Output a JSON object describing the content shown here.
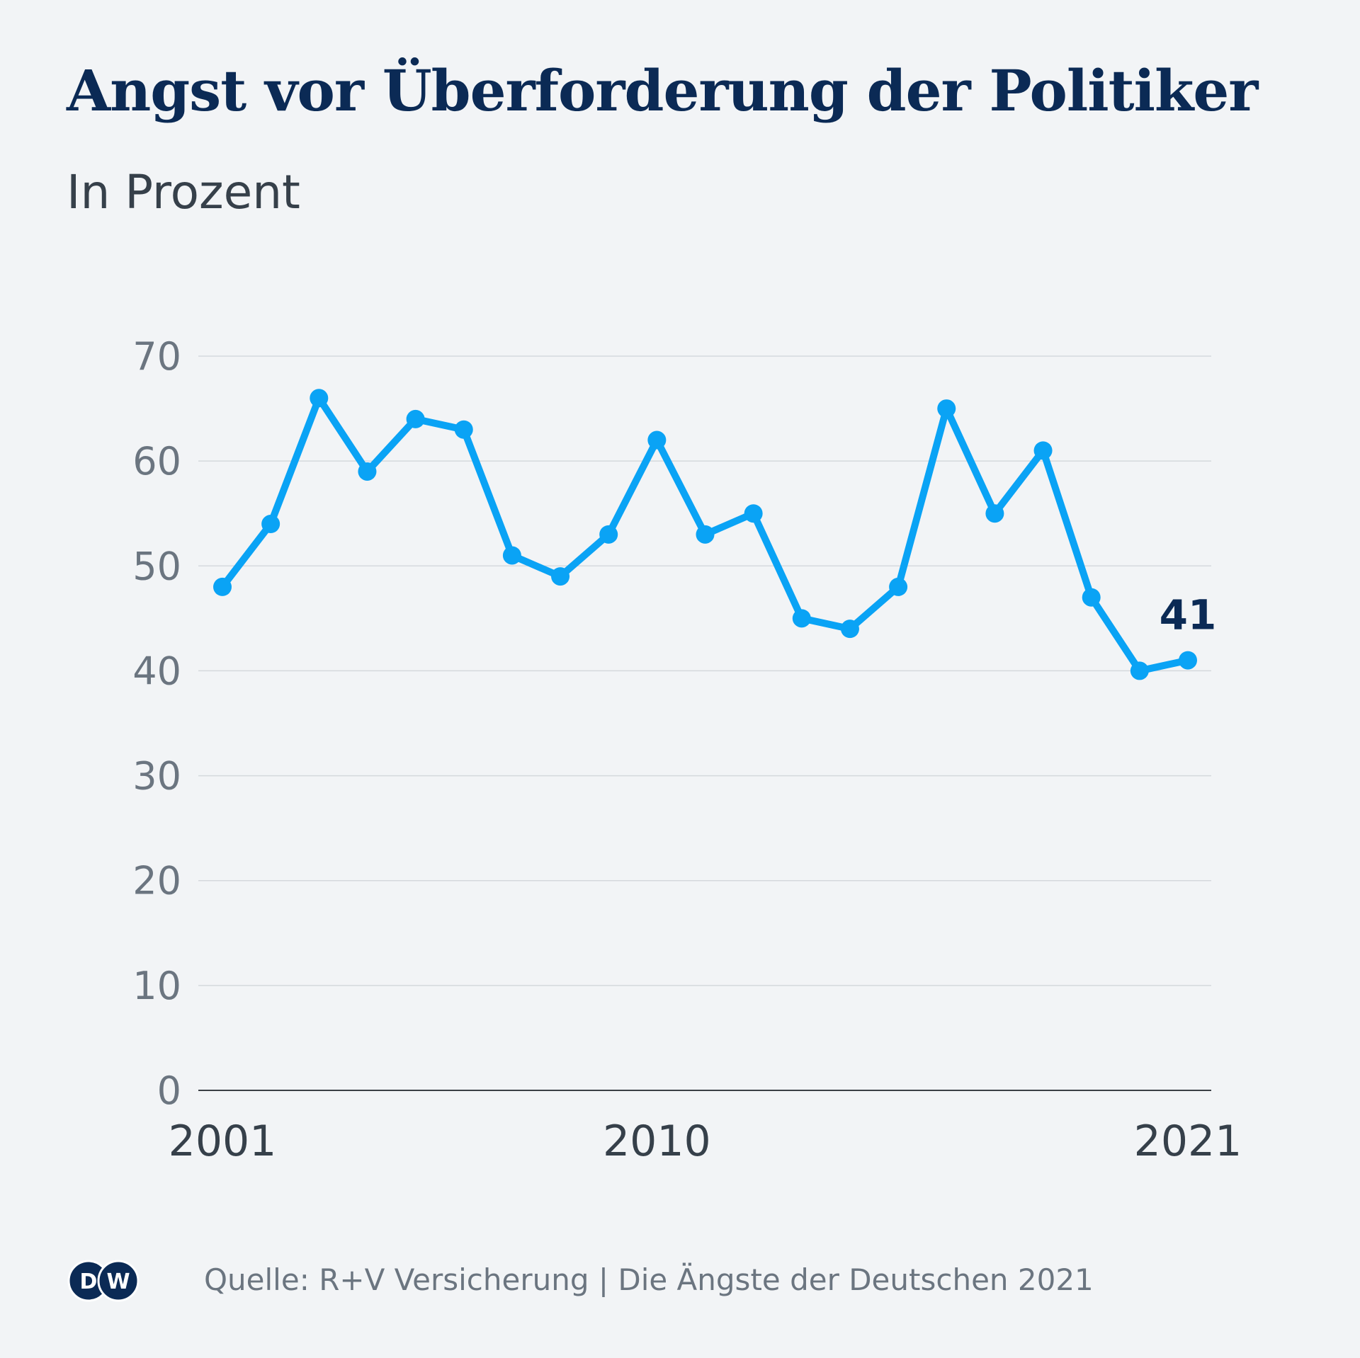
{
  "header": {
    "title": "Angst vor Überforderung der Politiker",
    "subtitle": "In Prozent"
  },
  "footer": {
    "logo_text": "DW",
    "source": "Quelle: R+V Versicherung | Die Ängste der Deutschen 2021"
  },
  "colors": {
    "line": "#0aa3f5",
    "title": "#0b2a55",
    "label": "#0b2a55",
    "axis_text": "#6b7580",
    "year_text": "#36404a",
    "grid": "#d5d9dd",
    "baseline": "#3a3f45"
  },
  "chart_data": {
    "type": "line",
    "title": "Angst vor Überforderung der Politiker",
    "subtitle": "In Prozent",
    "xlabel": "",
    "ylabel": "",
    "ylim": [
      0,
      70
    ],
    "yticks": [
      0,
      10,
      20,
      30,
      40,
      50,
      60,
      70
    ],
    "grid": true,
    "x": [
      2001,
      2002,
      2003,
      2004,
      2005,
      2006,
      2007,
      2008,
      2009,
      2010,
      2011,
      2012,
      2013,
      2014,
      2015,
      2016,
      2017,
      2018,
      2019,
      2020,
      2021
    ],
    "xtick_labels": [
      "2001",
      "2010",
      "2021"
    ],
    "series": [
      {
        "name": "Angst vor Überforderung der Politiker",
        "values": [
          48,
          54,
          66,
          59,
          64,
          63,
          51,
          49,
          53,
          62,
          53,
          55,
          45,
          44,
          48,
          65,
          55,
          61,
          47,
          40,
          41
        ]
      }
    ],
    "annotations": [
      {
        "x": 2021,
        "text": "41"
      }
    ]
  }
}
